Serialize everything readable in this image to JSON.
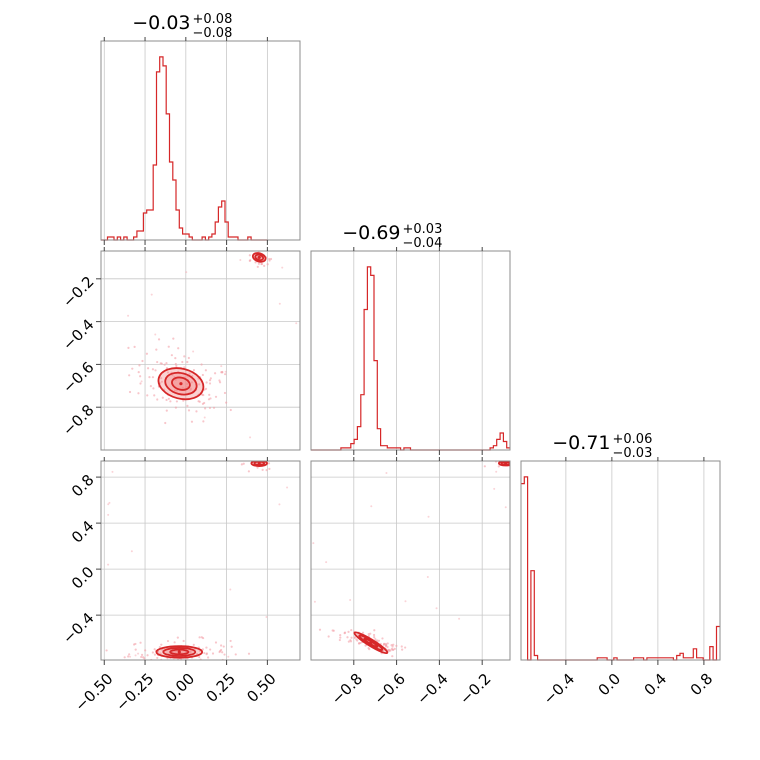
{
  "chart_data": {
    "type": "corner",
    "colors": {
      "line": "#d62728",
      "fill": "#f08080",
      "frame": "#8c8c8c",
      "grid": "#c8c8c8",
      "scatter": "#f4a0a8"
    },
    "grid": true,
    "params": [
      {
        "range": [
          -0.52,
          0.7
        ],
        "ticks": [
          -0.5,
          -0.25,
          0.0,
          0.25,
          0.5
        ],
        "tick_labels": [
          "−0.50",
          "−0.25",
          "0.00",
          "0.25",
          "0.50"
        ],
        "title": {
          "median": "−0.03",
          "upper": "+0.08",
          "lower": "−0.08"
        }
      },
      {
        "range": [
          -1.0,
          -0.07
        ],
        "ticks": [
          -0.8,
          -0.6,
          -0.4,
          -0.2
        ],
        "tick_labels": [
          "−0.8",
          "−0.6",
          "−0.4",
          "−0.2"
        ],
        "title": {
          "median": "−0.69",
          "upper": "+0.03",
          "lower": "−0.04"
        }
      },
      {
        "range": [
          -0.79,
          0.94
        ],
        "ticks": [
          -0.4,
          0.0,
          0.4,
          0.8
        ],
        "tick_labels": [
          "−0.4",
          "0.0",
          "0.4",
          "0.8"
        ],
        "title": {
          "median": "−0.71",
          "upper": "+0.06",
          "lower": "−0.03"
        }
      }
    ],
    "histograms": [
      {
        "param": 0,
        "start": -0.52,
        "width": 0.02,
        "counts": [
          0,
          0,
          1,
          1,
          0,
          1,
          0,
          1,
          0,
          0,
          1,
          3,
          3,
          9,
          10,
          10,
          25,
          56,
          61,
          58,
          42,
          26,
          20,
          10,
          4,
          2,
          2,
          1,
          0,
          0,
          0,
          1,
          0,
          1,
          2,
          6,
          11,
          13,
          6,
          1,
          1,
          1,
          0,
          0,
          0,
          1,
          0,
          0,
          0,
          0,
          0
        ]
      },
      {
        "param": 1,
        "start": -1.0,
        "width": 0.0155,
        "counts": [
          0,
          0,
          0,
          0,
          0,
          0,
          0,
          0,
          0,
          1,
          1,
          1,
          3,
          5,
          11,
          26,
          66,
          86,
          82,
          42,
          10,
          2,
          2,
          1,
          1,
          1,
          1,
          0,
          1,
          1,
          0,
          0,
          0,
          0,
          0,
          0,
          0,
          0,
          0,
          0,
          0,
          0,
          0,
          0,
          0,
          0,
          0,
          0,
          0,
          0,
          0,
          0,
          0,
          0,
          1,
          2,
          5,
          8,
          4,
          1
        ]
      },
      {
        "param": 2,
        "start": -0.79,
        "width": 0.0288,
        "counts": [
          79,
          82,
          0,
          40,
          2,
          0,
          0,
          0,
          0,
          0,
          0,
          0,
          0,
          0,
          0,
          0,
          0,
          0,
          0,
          0,
          0,
          0,
          0,
          1,
          1,
          1,
          0,
          0,
          1,
          0,
          0,
          0,
          0,
          0,
          1,
          1,
          1,
          0,
          1,
          1,
          1,
          1,
          1,
          1,
          1,
          1,
          0,
          2,
          3,
          1,
          1,
          1,
          5,
          1,
          1,
          0,
          0,
          6,
          0,
          15
        ]
      }
    ],
    "pairs": [
      {
        "x": 0,
        "y": 1,
        "modes": [
          {
            "cx": -0.03,
            "cy": -0.69,
            "sx": 0.07,
            "sy": 0.035,
            "rot": -0.25,
            "n": 130
          },
          {
            "cx": 0.45,
            "cy": -0.1,
            "sx": 0.025,
            "sy": 0.012,
            "rot": -0.3,
            "n": 22
          }
        ]
      },
      {
        "x": 0,
        "y": 2,
        "modes": [
          {
            "cx": -0.04,
            "cy": -0.72,
            "sx": 0.07,
            "sy": 0.025,
            "rot": 0.0,
            "n": 130
          },
          {
            "cx": 0.45,
            "cy": 0.92,
            "sx": 0.03,
            "sy": 0.015,
            "rot": 0.0,
            "n": 20
          }
        ]
      },
      {
        "x": 1,
        "y": 2,
        "modes": [
          {
            "cx": -0.72,
            "cy": -0.64,
            "sx": 0.045,
            "sy": 0.014,
            "rot": -0.55,
            "n": 110
          },
          {
            "cx": -0.09,
            "cy": 0.92,
            "sx": 0.02,
            "sy": 0.012,
            "rot": 0.0,
            "n": 18
          }
        ]
      }
    ]
  }
}
